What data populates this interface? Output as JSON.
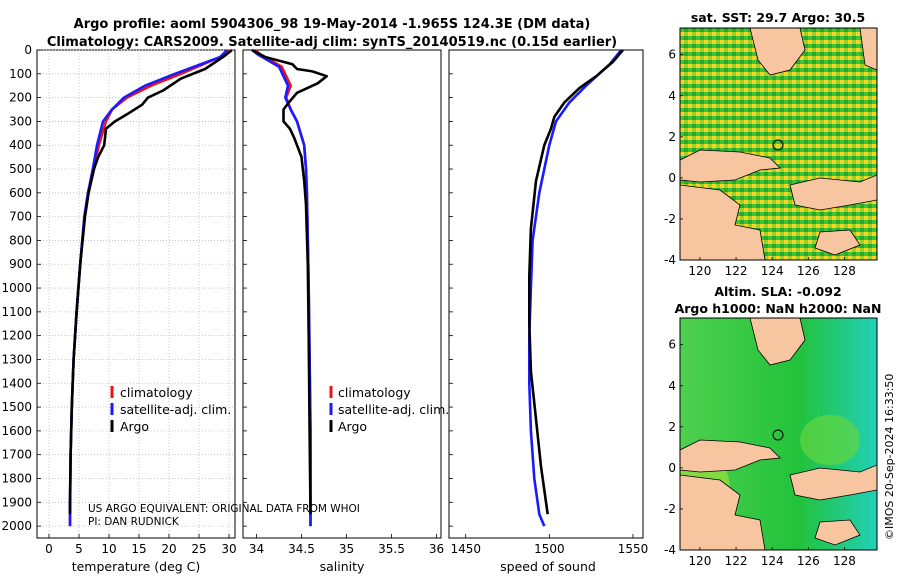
{
  "header": {
    "title_line1": "Argo profile: aoml 5904306_98 19-May-2014 -1.965S 124.3E (DM data)",
    "title_line2": "Climatology: CARS2009. Satellite-adj clim: synTS_20140519.nc (0.15d earlier)"
  },
  "watermark": "©IMOS 20-Sep-2024 16:33:50",
  "pi_text": {
    "line1": "US ARGO EQUIVALENT: ORIGINAL DATA FROM WHOI",
    "line2": "PI: DAN RUDNICK"
  },
  "legend": {
    "labels": [
      "climatology",
      "satellite-adj. clim.",
      "Argo"
    ],
    "colors": [
      "#e8141c",
      "#1a1aff",
      "#000000"
    ]
  },
  "maps": {
    "sst": {
      "title": "sat. SST: 29.7 Argo: 30.5",
      "xticks": [
        "120",
        "122",
        "124",
        "126",
        "128"
      ],
      "yticks": [
        "6",
        "4",
        "2",
        "0",
        "-2",
        "-4"
      ]
    },
    "sla": {
      "title_line1": "Altim. SLA: -0.092",
      "title_line2": "Argo h1000: NaN h2000: NaN",
      "xticks": [
        "120",
        "122",
        "124",
        "126",
        "128"
      ],
      "yticks": [
        "6",
        "4",
        "2",
        "0",
        "-2",
        "-4"
      ]
    }
  },
  "chart_data": [
    {
      "type": "line",
      "xlabel": "temperature (deg C)",
      "ylabel": "",
      "xlim": [
        -2,
        31
      ],
      "ylim": [
        2050,
        0
      ],
      "xticks": [
        0,
        5,
        10,
        15,
        20,
        25,
        30
      ],
      "yticks": [
        0,
        100,
        200,
        300,
        400,
        500,
        600,
        700,
        800,
        900,
        1000,
        1100,
        1200,
        1300,
        1400,
        1500,
        1600,
        1700,
        1800,
        1900,
        2000
      ],
      "grid": true,
      "series": [
        {
          "name": "climatology",
          "color": "#e8141c",
          "x": [
            30,
            28.5,
            22,
            17,
            13,
            10.5,
            9.5,
            8.3,
            7.5,
            6.5,
            5.9,
            5.2,
            4.6,
            4.1,
            3.8,
            3.6,
            3.5,
            3.5
          ],
          "y": [
            0,
            30,
            100,
            150,
            200,
            250,
            300,
            400,
            500,
            600,
            700,
            900,
            1100,
            1300,
            1500,
            1700,
            1900,
            2000
          ]
        },
        {
          "name": "satellite-adj. clim.",
          "color": "#1a1aff",
          "x": [
            29.7,
            28.5,
            21,
            16,
            12.5,
            10.5,
            9,
            8,
            7.3,
            6.5,
            5.9,
            5.2,
            4.6,
            4.1,
            3.8,
            3.6,
            3.5,
            3.5
          ],
          "y": [
            0,
            30,
            100,
            150,
            200,
            250,
            300,
            400,
            500,
            600,
            700,
            900,
            1100,
            1300,
            1500,
            1700,
            1900,
            2000
          ]
        },
        {
          "name": "Argo",
          "color": "#000000",
          "x": [
            30.5,
            29,
            26,
            22,
            19,
            16.5,
            15.5,
            13,
            11,
            9.5,
            9.2,
            8.2,
            7.5,
            6.6,
            6,
            5.2,
            4.6,
            4.1,
            3.8,
            3.6,
            3.5
          ],
          "y": [
            0,
            30,
            80,
            120,
            170,
            200,
            230,
            270,
            300,
            330,
            400,
            450,
            500,
            600,
            700,
            900,
            1100,
            1300,
            1500,
            1700,
            1950
          ]
        }
      ]
    },
    {
      "type": "line",
      "xlabel": "salinity",
      "xlim": [
        33.85,
        36.05
      ],
      "ylim": [
        2050,
        0
      ],
      "xticks": [
        34,
        34.5,
        35,
        35.5,
        36
      ],
      "xticklabels": [
        "34",
        "34.5",
        "35",
        "35.5",
        "36"
      ],
      "grid": false,
      "series": [
        {
          "name": "climatology",
          "color": "#e8141c",
          "x": [
            33.98,
            34.05,
            34.28,
            34.38,
            34.33,
            34.38,
            34.45,
            34.53,
            34.55,
            34.56,
            34.57,
            34.58,
            34.59,
            34.6,
            34.6
          ],
          "y": [
            0,
            20,
            70,
            150,
            200,
            250,
            300,
            400,
            500,
            600,
            800,
            1000,
            1300,
            1600,
            2000
          ]
        },
        {
          "name": "satellite-adj. clim.",
          "color": "#1a1aff",
          "x": [
            33.95,
            34.02,
            34.25,
            34.35,
            34.32,
            34.38,
            34.45,
            34.53,
            34.55,
            34.56,
            34.57,
            34.58,
            34.59,
            34.6,
            34.6
          ],
          "y": [
            0,
            20,
            70,
            150,
            200,
            250,
            300,
            400,
            500,
            600,
            800,
            1000,
            1300,
            1600,
            2000
          ]
        },
        {
          "name": "Argo",
          "color": "#000000",
          "x": [
            33.95,
            34.1,
            34.4,
            34.45,
            34.62,
            34.78,
            34.68,
            34.45,
            34.36,
            34.3,
            34.3,
            34.37,
            34.42,
            34.5,
            34.53,
            34.55,
            34.57,
            34.58,
            34.59,
            34.6
          ],
          "y": [
            0,
            30,
            60,
            80,
            90,
            110,
            140,
            180,
            220,
            250,
            300,
            330,
            370,
            450,
            550,
            650,
            900,
            1200,
            1600,
            1950
          ]
        }
      ]
    },
    {
      "type": "line",
      "xlabel": "speed of sound",
      "xlim": [
        1440,
        1556
      ],
      "ylim": [
        2050,
        0
      ],
      "xticks": [
        1450,
        1500,
        1550
      ],
      "xticklabels": [
        "1450",
        "1500",
        "1550"
      ],
      "grid": false,
      "series": [
        {
          "name": "satellite-adj. clim.",
          "color": "#1a1aff",
          "x": [
            1543,
            1536,
            1522,
            1512,
            1504,
            1500,
            1494,
            1490,
            1489,
            1488,
            1488,
            1489,
            1491,
            1494,
            1497
          ],
          "y": [
            0,
            60,
            150,
            220,
            300,
            400,
            600,
            800,
            1000,
            1200,
            1400,
            1600,
            1800,
            1950,
            2000
          ]
        },
        {
          "name": "Argo",
          "color": "#000000",
          "x": [
            1544,
            1538,
            1528,
            1518,
            1509,
            1503,
            1501,
            1497,
            1492,
            1489,
            1488,
            1488,
            1489,
            1492,
            1495,
            1499
          ],
          "y": [
            0,
            50,
            110,
            160,
            220,
            280,
            330,
            400,
            550,
            750,
            950,
            1150,
            1350,
            1550,
            1750,
            1950
          ]
        }
      ]
    }
  ]
}
